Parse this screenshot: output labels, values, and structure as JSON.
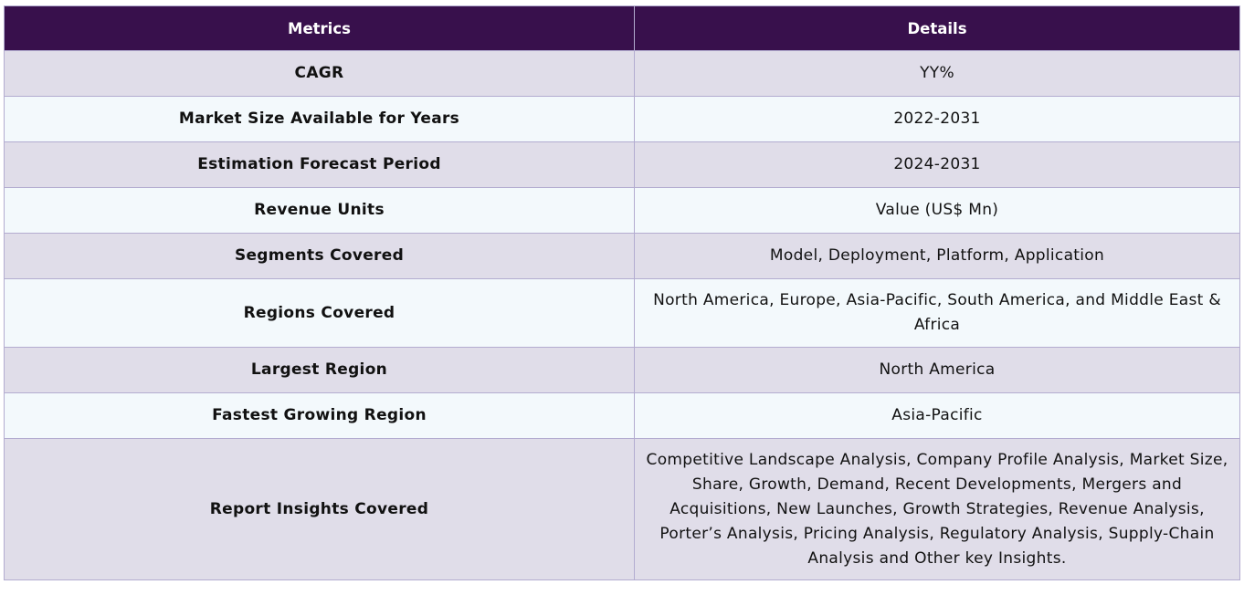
{
  "header": {
    "metrics_label": "Metrics",
    "details_label": "Details"
  },
  "rows": [
    {
      "metric": "CAGR",
      "detail": "YY%"
    },
    {
      "metric": "Market Size Available for Years",
      "detail": "2022-2031"
    },
    {
      "metric": "Estimation Forecast Period",
      "detail": "2024-2031"
    },
    {
      "metric": "Revenue Units",
      "detail": "Value (US$ Mn)"
    },
    {
      "metric": "Segments Covered",
      "detail": "Model, Deployment, Platform, Application"
    },
    {
      "metric": "Regions Covered",
      "detail": "North America, Europe, Asia-Pacific, South America, and Middle East & Africa"
    },
    {
      "metric": "Largest Region",
      "detail": "North America"
    },
    {
      "metric": "Fastest Growing Region",
      "detail": "Asia-Pacific"
    },
    {
      "metric": "Report Insights Covered",
      "detail": "Competitive Landscape Analysis, Company Profile Analysis, Market Size, Share, Growth, Demand, Recent Developments, Mergers and Acquisitions, New Launches, Growth Strategies, Revenue Analysis, Porter’s Analysis, Pricing Analysis, Regulatory Analysis, Supply-Chain Analysis and Other key Insights."
    }
  ],
  "colors": {
    "header_bg": "#38104c",
    "row_odd_bg": "#e0dde9",
    "row_even_bg": "#f3f9fc",
    "border": "#b3acd0"
  }
}
